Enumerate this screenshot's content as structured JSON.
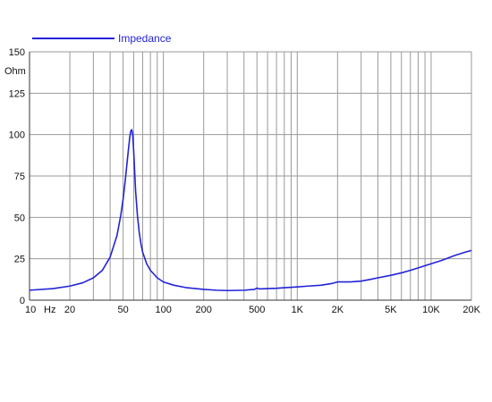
{
  "chart_data": {
    "type": "line",
    "x_scale": "log",
    "xlim": [
      10,
      20000
    ],
    "ylim": [
      0,
      150
    ],
    "grid": true,
    "legend_position": "top-left",
    "y_unit": "Ohm",
    "x_unit": "Hz",
    "x_ticks": [
      {
        "value": 10,
        "label": "10"
      },
      {
        "value": 20,
        "label": "20"
      },
      {
        "value": 50,
        "label": "50"
      },
      {
        "value": 100,
        "label": "100"
      },
      {
        "value": 200,
        "label": "200"
      },
      {
        "value": 500,
        "label": "500"
      },
      {
        "value": 1000,
        "label": "1K"
      },
      {
        "value": 2000,
        "label": "2K"
      },
      {
        "value": 5000,
        "label": "5K"
      },
      {
        "value": 10000,
        "label": "10K"
      },
      {
        "value": 20000,
        "label": "20K"
      }
    ],
    "y_ticks": [
      0,
      25,
      50,
      75,
      100,
      125,
      150
    ],
    "series": [
      {
        "name": "Impedance",
        "color": "#2323d8",
        "x": [
          10,
          15,
          20,
          25,
          30,
          35,
          40,
          45,
          48,
          50,
          52,
          54,
          56,
          57,
          58,
          59,
          60,
          61,
          62,
          64,
          66,
          68,
          70,
          75,
          80,
          90,
          100,
          120,
          150,
          200,
          250,
          300,
          400,
          480,
          500,
          520,
          600,
          700,
          800,
          1000,
          1200,
          1500,
          1800,
          2000,
          2500,
          3000,
          3500,
          4000,
          5000,
          6000,
          7000,
          8000,
          10000,
          12000,
          15000,
          18000,
          20000
        ],
        "values": [
          6,
          7,
          8.5,
          10.5,
          13.5,
          18,
          26,
          39,
          51,
          61,
          73,
          86,
          98,
          102,
          103,
          100,
          90,
          78,
          66,
          51,
          41,
          34,
          29,
          22,
          18,
          13.5,
          11,
          9,
          7.5,
          6.5,
          6,
          5.8,
          6,
          6.5,
          7.3,
          6.8,
          7,
          7.2,
          7.5,
          8,
          8.5,
          9,
          10,
          11,
          11,
          11.5,
          12.5,
          13.5,
          15,
          16.5,
          18,
          19.5,
          22,
          24,
          27,
          29,
          30
        ]
      }
    ]
  }
}
